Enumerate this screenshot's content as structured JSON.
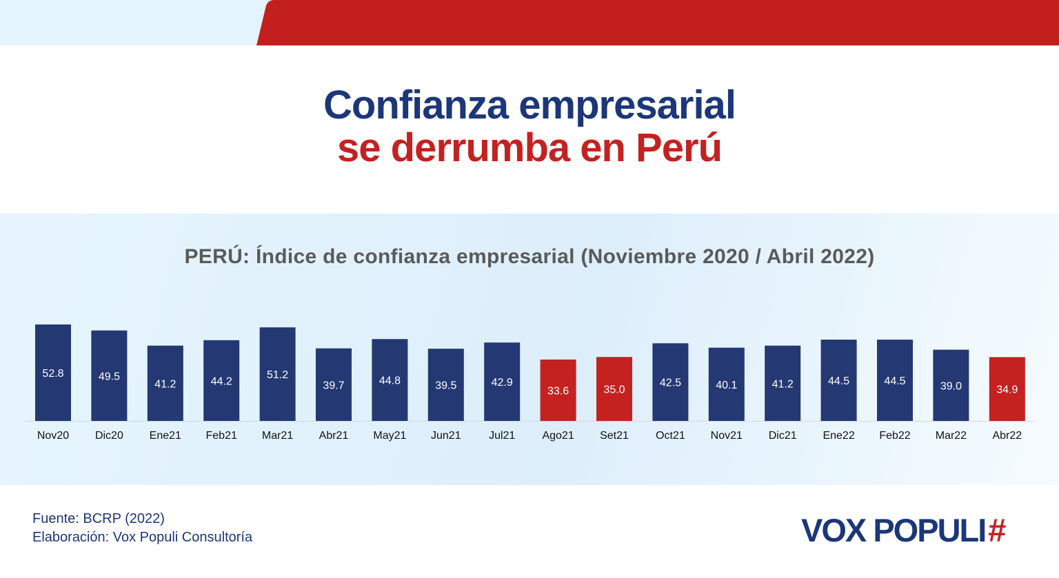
{
  "headline": {
    "line1": "Confianza empresarial",
    "line2": "se derrumba en Perú"
  },
  "footer": {
    "source": "Fuente: BCRP (2022)",
    "credit": "Elaboración: Vox Populi Consultoría"
  },
  "brand": {
    "name": "VOX POPULI",
    "mark": "#"
  },
  "colors": {
    "navy": "#243873",
    "red": "#c42121",
    "band_red": "#c21f1e",
    "band_light": "#e4f4fc"
  },
  "chart_data": {
    "type": "bar",
    "title": "PERÚ: Índice de confianza empresarial (Noviembre 2020 / Abril 2022)",
    "xlabel": "",
    "ylabel": "",
    "categories": [
      "Nov20",
      "Dic20",
      "Ene21",
      "Feb21",
      "Mar21",
      "Abr21",
      "May21",
      "Jun21",
      "Jul21",
      "Ago21",
      "Set21",
      "Oct21",
      "Nov21",
      "Dic21",
      "Ene22",
      "Feb22",
      "Mar22",
      "Abr22"
    ],
    "values": [
      52.8,
      49.5,
      41.2,
      44.2,
      51.2,
      39.7,
      44.8,
      39.5,
      42.9,
      33.6,
      35.0,
      42.5,
      40.1,
      41.2,
      44.5,
      44.5,
      39.0,
      34.9
    ],
    "value_labels": [
      "52.8",
      "49.5",
      "41.2",
      "44.2",
      "51.2",
      "39.7",
      "44.8",
      "39.5",
      "42.9",
      "33.6",
      "35.0",
      "42.5",
      "40.1",
      "41.2",
      "44.5",
      "44.5",
      "39.0",
      "34.9"
    ],
    "bar_colors": [
      "#243873",
      "#243873",
      "#243873",
      "#243873",
      "#243873",
      "#243873",
      "#243873",
      "#243873",
      "#243873",
      "#c42121",
      "#c42121",
      "#243873",
      "#243873",
      "#243873",
      "#243873",
      "#243873",
      "#243873",
      "#c42121"
    ],
    "ylim": [
      0,
      55
    ],
    "grid": false,
    "legend": "none"
  }
}
